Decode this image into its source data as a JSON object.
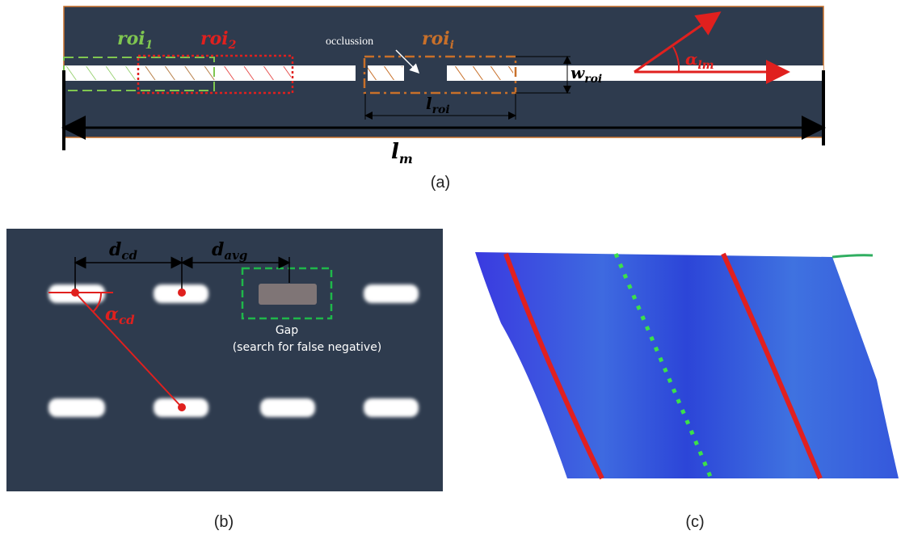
{
  "panel_a": {
    "roi_1": {
      "base": "roi",
      "sub": "1"
    },
    "roi_2": {
      "base": "roi",
      "sub": "2"
    },
    "roi_i": {
      "base": "roi",
      "sub": "i"
    },
    "occlusion": "occlussion",
    "w_roi": {
      "base": "w",
      "sub": "roi"
    },
    "alpha_lm": {
      "base": "α",
      "sub": "lm"
    },
    "l_roi": {
      "base": "l",
      "sub": "roi"
    },
    "l_m": {
      "base": "l",
      "sub": "m"
    },
    "caption": "(a)"
  },
  "panel_b": {
    "d_cd": {
      "base": "d",
      "sub": "cd"
    },
    "d_avg": {
      "base": "d",
      "sub": "avg"
    },
    "alpha_cd": {
      "base": "α",
      "sub": "cd"
    },
    "gap_title": "Gap",
    "gap_note": "(search for false negative)",
    "caption": "(b)"
  },
  "panel_c": {
    "caption": "(c)"
  }
}
